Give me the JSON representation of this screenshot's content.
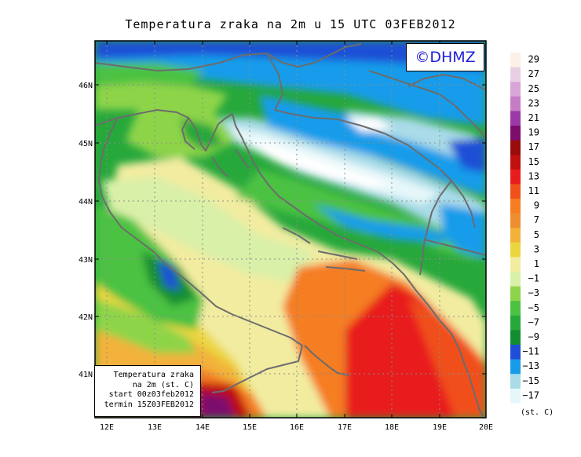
{
  "title": "Temperatura zraka na 2m u 15 UTC 03FEB2012",
  "logo_text": "©DHMZ",
  "info_box": {
    "line1": "Temperatura zraka",
    "line2": "na 2m (st. C)",
    "line3": "start 00z03feb2012",
    "line4": "termin 15Z03FEB2012"
  },
  "axes": {
    "lon_ticks": [
      "12E",
      "13E",
      "14E",
      "15E",
      "16E",
      "17E",
      "18E",
      "19E",
      "20E"
    ],
    "lat_ticks": [
      "41N",
      "42N",
      "43N",
      "44N",
      "45N",
      "46N"
    ],
    "lon_range": [
      11.8,
      20.0
    ],
    "lat_range": [
      40.35,
      46.95
    ],
    "grid": true
  },
  "legend": {
    "unit": "(st. C)",
    "labels": [
      "29",
      "27",
      "25",
      "23",
      "21",
      "19",
      "17",
      "15",
      "13",
      "11",
      "9",
      "7",
      "5",
      "3",
      "1",
      "−1",
      "−3",
      "−5",
      "−7",
      "−9",
      "−11",
      "−13",
      "−15",
      "−17"
    ],
    "colors": [
      "#fdf0e6",
      "#e9cfe3",
      "#d8a6d6",
      "#c77cc7",
      "#9b3aa6",
      "#7d0d6d",
      "#9a0b0b",
      "#c01010",
      "#e81c1c",
      "#f0501c",
      "#f57d22",
      "#ec8e30",
      "#f2b23a",
      "#ecd63f",
      "#f2eca0",
      "#d9f0a8",
      "#8ed44a",
      "#4bc242",
      "#27a83b",
      "#128e31",
      "#1f4fd6",
      "#169cea",
      "#a9dbe8",
      "#e6f7f9",
      "#ffffff"
    ]
  },
  "colors": {
    "coastline": "#6c6c6c",
    "grid": "#8c8c8c",
    "frame": "#000000"
  }
}
